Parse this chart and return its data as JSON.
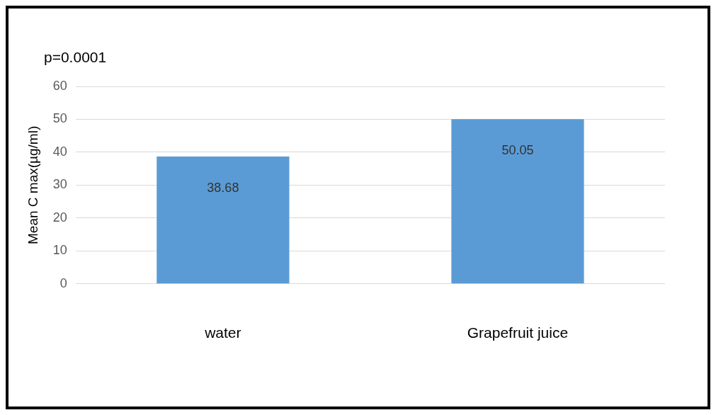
{
  "chart_data": {
    "type": "bar",
    "categories": [
      "water",
      "Grapefruit juice"
    ],
    "values": [
      38.68,
      50.05
    ],
    "color": "#5b9bd5",
    "ylabel": "Mean C max(µg/ml)",
    "ylim": [
      0,
      60
    ],
    "yticks": [
      0,
      10,
      20,
      30,
      40,
      50,
      60
    ],
    "grid": "y",
    "data_labels": true,
    "annotations": [
      "p=0.0001"
    ]
  }
}
